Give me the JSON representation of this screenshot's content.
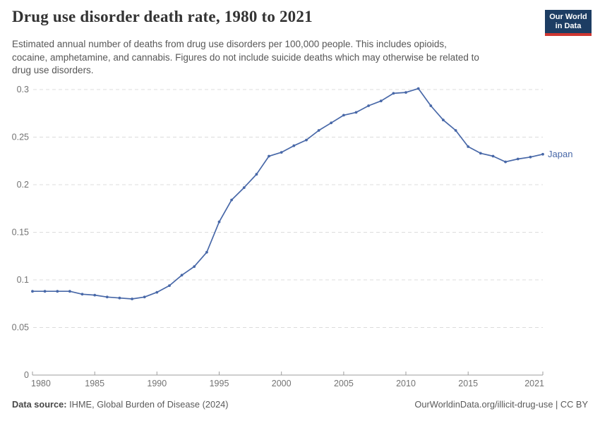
{
  "header": {
    "title": "Drug use disorder death rate, 1980 to 2021",
    "subtitle_lines": [
      "Estimated annual number of deaths from drug use disorders per 100,000 people. This includes opioids,",
      "cocaine, amphetamine, and cannabis. Figures do not include suicide deaths which may otherwise be related to",
      "drug use disorders."
    ]
  },
  "logo": {
    "line1": "Our World",
    "line2": "in Data",
    "bg_color": "#1d3d63",
    "stripe_color": "#cf3631"
  },
  "chart_data": {
    "type": "line",
    "title": "Drug use disorder death rate, 1980 to 2021",
    "xlabel": "",
    "ylabel": "",
    "xlim": [
      1980,
      2021
    ],
    "ylim": [
      0,
      0.3
    ],
    "xticks": [
      1980,
      1985,
      1990,
      1995,
      2000,
      2005,
      2010,
      2015,
      2021
    ],
    "yticks": [
      0,
      0.05,
      0.1,
      0.15,
      0.2,
      0.25,
      0.3
    ],
    "grid": "horizontal-dashed",
    "legend_position": "end-of-line-label",
    "x": [
      1980,
      1981,
      1982,
      1983,
      1984,
      1985,
      1986,
      1987,
      1988,
      1989,
      1990,
      1991,
      1992,
      1993,
      1994,
      1995,
      1996,
      1997,
      1998,
      1999,
      2000,
      2001,
      2002,
      2003,
      2004,
      2005,
      2006,
      2007,
      2008,
      2009,
      2010,
      2011,
      2012,
      2013,
      2014,
      2015,
      2016,
      2017,
      2018,
      2019,
      2020,
      2021
    ],
    "series": [
      {
        "name": "Japan",
        "color": "#4868a8",
        "values": [
          0.088,
          0.088,
          0.088,
          0.088,
          0.085,
          0.084,
          0.082,
          0.081,
          0.08,
          0.082,
          0.087,
          0.094,
          0.105,
          0.114,
          0.129,
          0.161,
          0.184,
          0.197,
          0.211,
          0.23,
          0.234,
          0.241,
          0.247,
          0.257,
          0.265,
          0.273,
          0.276,
          0.283,
          0.288,
          0.296,
          0.297,
          0.301,
          0.283,
          0.268,
          0.257,
          0.24,
          0.233,
          0.23,
          0.224,
          0.227,
          0.229,
          0.232
        ]
      }
    ],
    "colors": {
      "grid": "#dcdcdc",
      "axis": "#9e9e9e",
      "tick_label": "#737373"
    }
  },
  "footer": {
    "source_label": "Data source:",
    "source_value": " IHME, Global Burden of Disease (2024)",
    "credit": "OurWorldinData.org/illicit-drug-use | CC BY"
  }
}
